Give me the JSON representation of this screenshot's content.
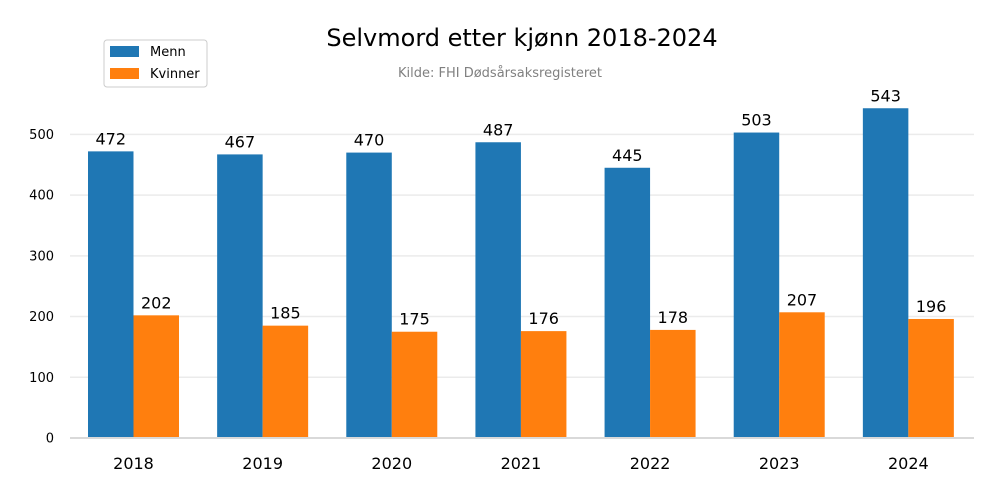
{
  "chart_data": {
    "type": "bar",
    "title": "Selvmord etter kjønn 2018-2024",
    "subtitle": "Kilde: FHI Dødsårsaksregisteret",
    "xlabel": "",
    "ylabel": "",
    "categories": [
      "2018",
      "2019",
      "2020",
      "2021",
      "2022",
      "2023",
      "2024"
    ],
    "series": [
      {
        "name": "Menn",
        "color": "#1f77b4",
        "values": [
          472,
          467,
          470,
          487,
          445,
          503,
          543
        ]
      },
      {
        "name": "Kvinner",
        "color": "#ff7f0e",
        "values": [
          202,
          185,
          175,
          176,
          178,
          207,
          196
        ]
      }
    ],
    "ylim": [
      0,
      550
    ],
    "yticks": [
      0,
      100,
      200,
      300,
      400,
      500
    ],
    "grid": true,
    "legend": "top-left"
  }
}
